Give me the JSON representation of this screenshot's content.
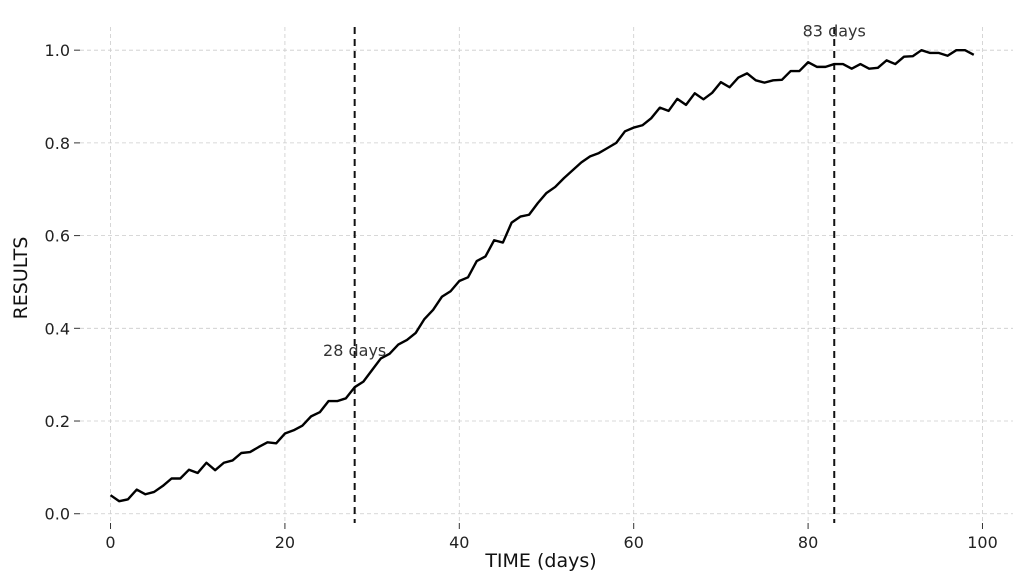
{
  "chart_data": {
    "type": "line",
    "xlabel": "TIME (days)",
    "ylabel": "RESULTS",
    "xlim": [
      -3.5,
      103.5
    ],
    "ylim": [
      -0.02,
      1.05
    ],
    "x_ticks": [
      0,
      20,
      40,
      60,
      80,
      100
    ],
    "x_tick_labels": [
      "0",
      "20",
      "40",
      "60",
      "80",
      "100"
    ],
    "y_ticks": [
      0.0,
      0.2,
      0.4,
      0.6,
      0.8,
      1.0
    ],
    "y_tick_labels": [
      "0.0",
      "0.2",
      "0.4",
      "0.6",
      "0.8",
      "1.0"
    ],
    "grid": true,
    "series": [
      {
        "color": "#000000",
        "x": [
          0,
          1,
          2,
          3,
          4,
          5,
          6,
          7,
          8,
          9,
          10,
          11,
          12,
          13,
          14,
          15,
          16,
          17,
          18,
          19,
          20,
          21,
          22,
          23,
          24,
          25,
          26,
          27,
          28,
          29,
          30,
          31,
          32,
          33,
          34,
          35,
          36,
          37,
          38,
          39,
          40,
          41,
          42,
          43,
          44,
          45,
          46,
          47,
          48,
          49,
          50,
          51,
          52,
          53,
          54,
          55,
          56,
          57,
          58,
          59,
          60,
          61,
          62,
          63,
          64,
          65,
          66,
          67,
          68,
          69,
          70,
          71,
          72,
          73,
          74,
          75,
          76,
          77,
          78,
          79,
          80,
          81,
          82,
          83,
          84,
          85,
          86,
          87,
          88,
          89,
          90,
          91,
          92,
          93,
          94,
          95,
          96,
          97,
          98,
          99
        ],
        "values": [
          0.04,
          0.027,
          0.031,
          0.052,
          0.042,
          0.047,
          0.06,
          0.076,
          0.076,
          0.095,
          0.088,
          0.11,
          0.094,
          0.11,
          0.115,
          0.131,
          0.133,
          0.144,
          0.154,
          0.152,
          0.173,
          0.18,
          0.19,
          0.21,
          0.219,
          0.243,
          0.243,
          0.249,
          0.273,
          0.285,
          0.31,
          0.335,
          0.345,
          0.365,
          0.375,
          0.39,
          0.42,
          0.44,
          0.468,
          0.48,
          0.502,
          0.51,
          0.545,
          0.555,
          0.59,
          0.585,
          0.628,
          0.641,
          0.645,
          0.67,
          0.692,
          0.705,
          0.724,
          0.741,
          0.758,
          0.771,
          0.778,
          0.789,
          0.8,
          0.825,
          0.833,
          0.838,
          0.853,
          0.876,
          0.869,
          0.895,
          0.882,
          0.907,
          0.894,
          0.908,
          0.931,
          0.92,
          0.941,
          0.95,
          0.935,
          0.93,
          0.935,
          0.936,
          0.955,
          0.955,
          0.974,
          0.964,
          0.964,
          0.97,
          0.97,
          0.96,
          0.97,
          0.96,
          0.962,
          0.978,
          0.97,
          0.986,
          0.987,
          1.0,
          0.994,
          0.994,
          0.988,
          1.0,
          1.0,
          0.99
        ]
      }
    ],
    "annotations": [
      {
        "type": "vline",
        "x": 28,
        "label": "28 days",
        "label_y": 0.34
      },
      {
        "type": "vline",
        "x": 83,
        "label": "83 days",
        "label_y": 1.03
      }
    ]
  }
}
